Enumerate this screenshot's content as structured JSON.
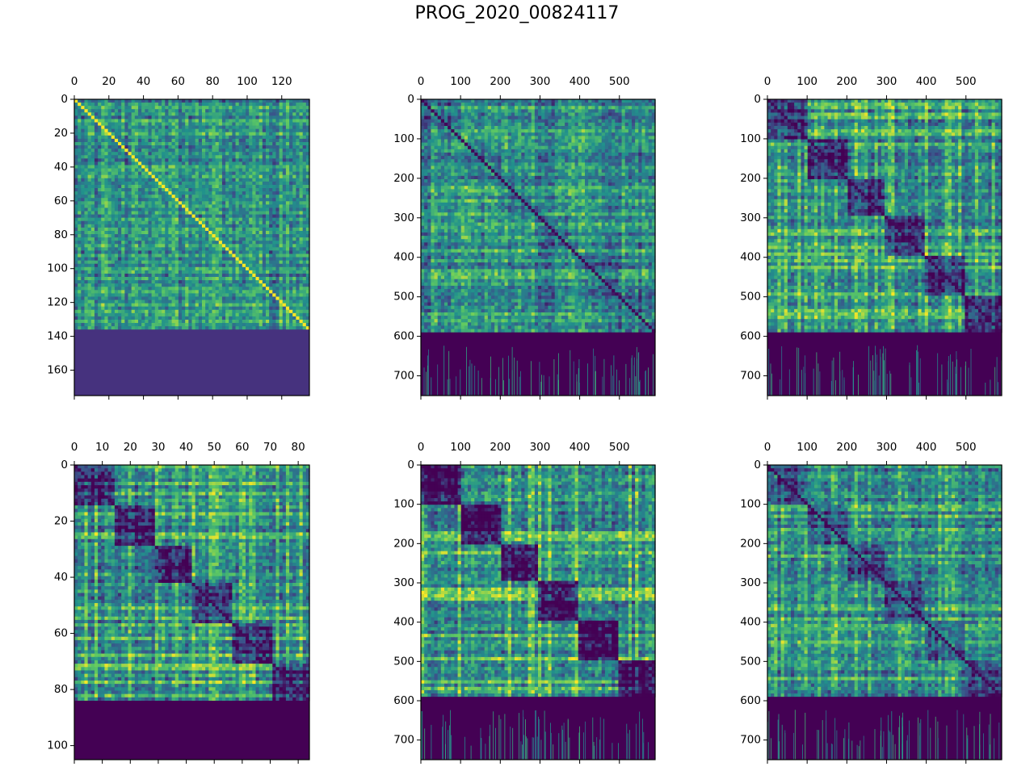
{
  "figure": {
    "title": "PROG_2020_00824117"
  },
  "colors": {
    "viridis_dark": "#440154",
    "viridis_blue": "#3b528b",
    "viridis_teal": "#21918c",
    "viridis_green": "#5ec962",
    "viridis_yellow": "#fde725",
    "padding_fill": "#46327e"
  },
  "chart_data": [
    {
      "type": "heatmap",
      "n": 136,
      "padded_rows": 175,
      "xticks": [
        0,
        20,
        40,
        60,
        80,
        100,
        120
      ],
      "yticks": [
        0,
        20,
        40,
        60,
        80,
        100,
        120,
        140,
        160
      ],
      "xlim": [
        0,
        136
      ],
      "ylim": [
        175,
        0
      ],
      "diagonal": "high",
      "block_structure": "none",
      "padding_value": "low"
    },
    {
      "type": "heatmap",
      "n": 590,
      "padded_rows": 750,
      "xticks": [
        0,
        100,
        200,
        300,
        400,
        500
      ],
      "yticks": [
        0,
        100,
        200,
        300,
        400,
        500,
        600,
        700
      ],
      "xlim": [
        0,
        590
      ],
      "ylim": [
        750,
        0
      ],
      "diagonal": "low",
      "block_structure": "weak",
      "padding_value": "lowest"
    },
    {
      "type": "heatmap",
      "n": 590,
      "padded_rows": 750,
      "xticks": [
        0,
        100,
        200,
        300,
        400,
        500
      ],
      "yticks": [
        0,
        100,
        200,
        300,
        400,
        500,
        600,
        700
      ],
      "xlim": [
        0,
        590
      ],
      "ylim": [
        750,
        0
      ],
      "diagonal": "low",
      "block_structure": "strong",
      "padding_value": "lowest"
    },
    {
      "type": "heatmap",
      "n": 84,
      "padded_rows": 105,
      "xticks": [
        0,
        10,
        20,
        30,
        40,
        50,
        60,
        70,
        80
      ],
      "yticks": [
        0,
        20,
        40,
        60,
        80,
        100
      ],
      "xlim": [
        0,
        84
      ],
      "ylim": [
        105,
        0
      ],
      "diagonal": "low",
      "block_structure": "strong",
      "padding_value": "lowest"
    },
    {
      "type": "heatmap",
      "n": 590,
      "padded_rows": 750,
      "xticks": [
        0,
        100,
        200,
        300,
        400,
        500
      ],
      "yticks": [
        0,
        100,
        200,
        300,
        400,
        500,
        600,
        700
      ],
      "xlim": [
        0,
        590
      ],
      "ylim": [
        750,
        0
      ],
      "diagonal": "low",
      "block_structure": "very strong",
      "padding_value": "lowest"
    },
    {
      "type": "heatmap",
      "n": 590,
      "padded_rows": 750,
      "xticks": [
        0,
        100,
        200,
        300,
        400,
        500
      ],
      "yticks": [
        0,
        100,
        200,
        300,
        400,
        500,
        600,
        700
      ],
      "xlim": [
        0,
        590
      ],
      "ylim": [
        750,
        0
      ],
      "diagonal": "low",
      "block_structure": "moderate",
      "padding_value": "lowest"
    }
  ]
}
